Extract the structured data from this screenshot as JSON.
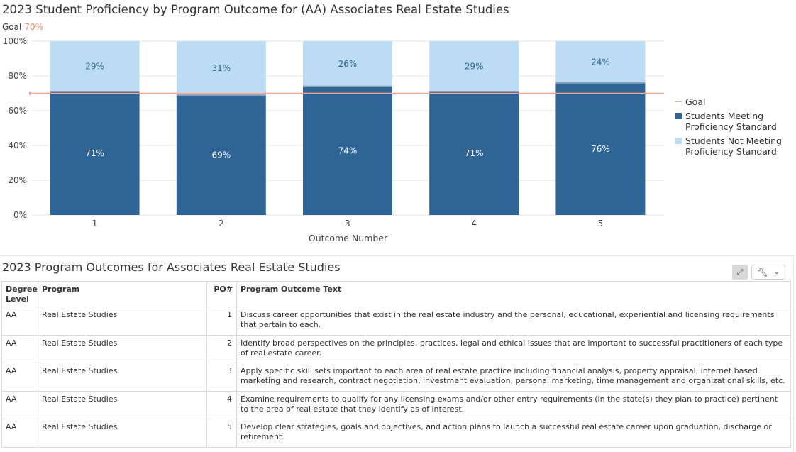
{
  "chart_data": {
    "type": "bar",
    "stacked": true,
    "title": "2023 Student Proficiency by Program Outcome for (AA) Associates Real Estate Studies",
    "goal_caption": "Goal",
    "goal_value_text": "70%",
    "goal_value": 70,
    "xlabel": "Outcome Number",
    "ylabel": "",
    "ylim": [
      0,
      100
    ],
    "yticks": [
      "0%",
      "20%",
      "40%",
      "60%",
      "80%",
      "100%"
    ],
    "categories": [
      "1",
      "2",
      "3",
      "4",
      "5"
    ],
    "series": [
      {
        "name": "Students Meeting Proficiency Standard",
        "values": [
          71,
          69,
          74,
          71,
          76
        ],
        "labels": [
          "71%",
          "69%",
          "74%",
          "71%",
          "76%"
        ],
        "color": "#2f6496"
      },
      {
        "name": "Students Not Meeting Proficiency Standard",
        "values": [
          29,
          31,
          26,
          29,
          24
        ],
        "labels": [
          "29%",
          "31%",
          "26%",
          "29%",
          "24%"
        ],
        "color": "#bcdcf3"
      }
    ],
    "goal_series_name": "Goal",
    "goal_color": "#f5a896",
    "grid": true,
    "legend_position": "right"
  },
  "legend": {
    "goal": "Goal",
    "meeting_line1": "Students Meeting",
    "meeting_line2": "Proficiency Standard",
    "not_meeting_line1": "Students Not Meeting",
    "not_meeting_line2": "Proficiency Standard"
  },
  "table": {
    "title": "2023 Program Outcomes for Associates Real Estate Studies",
    "headers": {
      "degree_line1": "Degree",
      "degree_line2": "Level",
      "program": "Program",
      "po": "PO#",
      "text": "Program Outcome Text"
    },
    "rows": [
      {
        "degree": "AA",
        "program": "Real Estate Studies",
        "po": "1",
        "text": "Discuss career opportunities that exist in the real estate industry and the personal, educational, experiential and licensing requirements that pertain to each."
      },
      {
        "degree": "AA",
        "program": "Real Estate Studies",
        "po": "2",
        "text": "Identify broad perspectives on the principles, practices, legal and ethical issues that are important to successful practitioners of each type of real estate career."
      },
      {
        "degree": "AA",
        "program": "Real Estate Studies",
        "po": "3",
        "text": "Apply specific skill sets important to each area of real estate practice including financial analysis, property appraisal, internet based marketing and research, contract negotiation, investment evaluation, personal marketing, time management and organizational skills, etc."
      },
      {
        "degree": "AA",
        "program": "Real Estate Studies",
        "po": "4",
        "text": "Examine requirements to qualify for any licensing exams and/or other entry requirements (in the state(s) they plan to practice) pertinent to the area of real estate that they identify as of interest."
      },
      {
        "degree": "AA",
        "program": "Real Estate Studies",
        "po": "5",
        "text": "Develop clear strategies, goals and objectives, and action plans to launch a successful real estate career upon graduation, discharge or retirement."
      }
    ]
  },
  "toolbar": {
    "expand_icon": "expand-icon",
    "wrench_icon": "wrench-icon",
    "dropdown_icon": "chevron-down-icon"
  }
}
